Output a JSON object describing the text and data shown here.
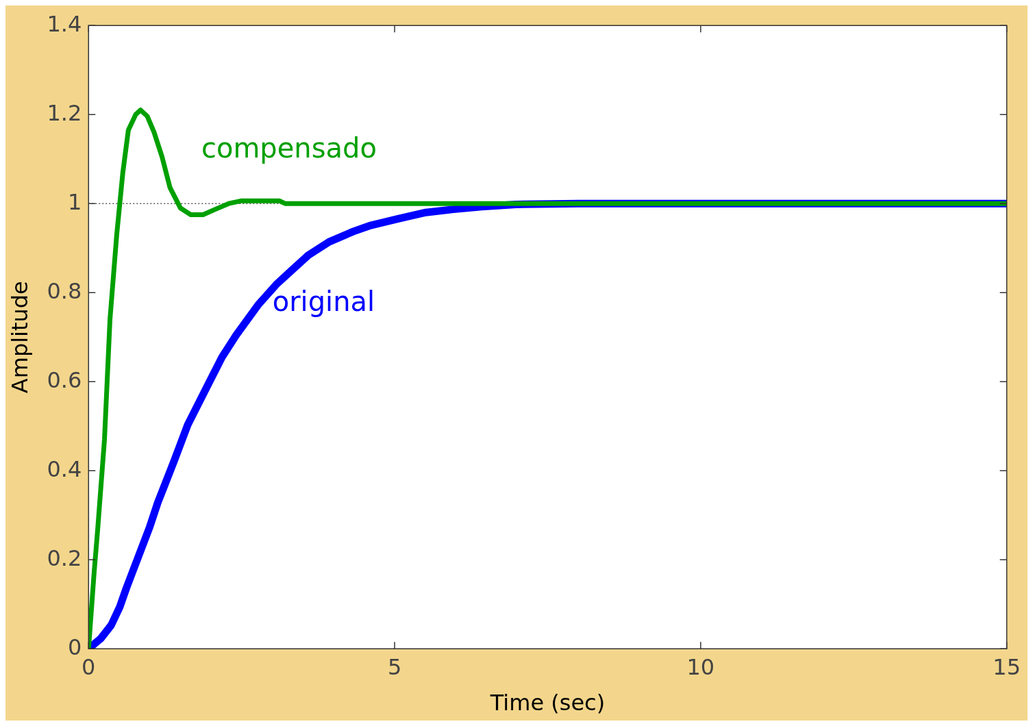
{
  "chart_data": {
    "type": "line",
    "xlabel": "Time (sec)",
    "ylabel": "Amplitude",
    "xlim": [
      0,
      15
    ],
    "xticks": [
      0,
      5,
      10,
      15
    ],
    "ylim": [
      0,
      1.4
    ],
    "yticks": [
      0,
      0.2,
      0.4,
      0.6,
      0.8,
      1,
      1.2,
      1.4
    ],
    "legend": false,
    "marker": "none",
    "line_style": "solid",
    "ref_lines": [
      {
        "axis": "y",
        "value": 1,
        "color": "#000000",
        "line_style": "dotted"
      }
    ],
    "series": [
      {
        "name": "compensado",
        "color": "#00a000",
        "x": [
          0,
          0.09,
          0.15,
          0.26,
          0.35,
          0.46,
          0.56,
          0.65,
          0.77,
          0.85,
          0.96,
          1.07,
          1.2,
          1.33,
          1.5,
          1.67,
          1.87,
          2.07,
          2.29,
          2.49,
          3.12,
          3.21,
          15
        ],
        "values": [
          0,
          0.17,
          0.27,
          0.47,
          0.74,
          0.93,
          1.07,
          1.165,
          1.2,
          1.21,
          1.196,
          1.16,
          1.105,
          1.036,
          0.99,
          0.975,
          0.975,
          0.987,
          1.0,
          1.006,
          1.006,
          1.0,
          1.0
        ]
      },
      {
        "name": "original",
        "color": "#0000ff",
        "x": [
          0,
          0.2,
          0.37,
          0.51,
          0.62,
          1.0,
          1.13,
          1.39,
          1.62,
          1.9,
          2.18,
          2.41,
          2.78,
          3.08,
          3.31,
          3.59,
          3.93,
          4.32,
          4.61,
          5.06,
          5.51,
          5.96,
          6.42,
          6.98,
          8.0,
          15
        ],
        "values": [
          0,
          0.023,
          0.053,
          0.094,
          0.137,
          0.274,
          0.328,
          0.419,
          0.503,
          0.579,
          0.655,
          0.704,
          0.774,
          0.82,
          0.849,
          0.884,
          0.914,
          0.937,
          0.951,
          0.966,
          0.98,
          0.987,
          0.993,
          0.998,
          1.0,
          1.0
        ]
      }
    ]
  }
}
